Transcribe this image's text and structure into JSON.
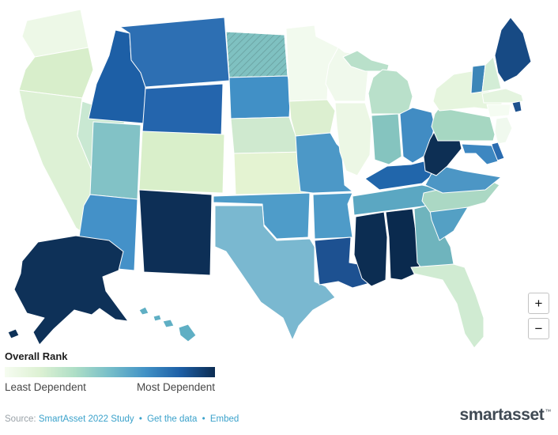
{
  "chart_data": {
    "type": "choropleth",
    "region": "United States",
    "title": "Overall Rank",
    "legend": {
      "title": "Overall Rank",
      "min_label": "Least Dependent",
      "max_label": "Most Dependent",
      "gradient": [
        "#f6fcf1",
        "#ddf1d3",
        "#aedec6",
        "#76bec9",
        "#4292c6",
        "#1d5fa6",
        "#0c2c52"
      ]
    },
    "states": [
      {
        "abbr": "WA",
        "name": "Washington",
        "color": "#edf8e7"
      },
      {
        "abbr": "OR",
        "name": "Oregon",
        "color": "#d8eecb"
      },
      {
        "abbr": "CA",
        "name": "California",
        "color": "#ddf1d5"
      },
      {
        "abbr": "NV",
        "name": "Nevada",
        "color": "#c9e8d2"
      },
      {
        "abbr": "ID",
        "name": "Idaho",
        "color": "#1d5fa6"
      },
      {
        "abbr": "MT",
        "name": "Montana",
        "color": "#2d6fb3"
      },
      {
        "abbr": "WY",
        "name": "Wyoming",
        "color": "#2465ad"
      },
      {
        "abbr": "UT",
        "name": "Utah",
        "color": "#82c2c6"
      },
      {
        "abbr": "CO",
        "name": "Colorado",
        "color": "#d9efca"
      },
      {
        "abbr": "AZ",
        "name": "Arizona",
        "color": "#4491c8"
      },
      {
        "abbr": "NM",
        "name": "New Mexico",
        "color": "#0d2f56"
      },
      {
        "abbr": "ND",
        "name": "North Dakota",
        "color": "#7fc1c1",
        "hatched": true
      },
      {
        "abbr": "SD",
        "name": "South Dakota",
        "color": "#4190c6"
      },
      {
        "abbr": "NE",
        "name": "Nebraska",
        "color": "#cfe9cf"
      },
      {
        "abbr": "KS",
        "name": "Kansas",
        "color": "#e4f3d2"
      },
      {
        "abbr": "OK",
        "name": "Oklahoma",
        "color": "#4e9cc9"
      },
      {
        "abbr": "TX",
        "name": "Texas",
        "color": "#7ab8d0"
      },
      {
        "abbr": "MN",
        "name": "Minnesota",
        "color": "#f2faee"
      },
      {
        "abbr": "IA",
        "name": "Iowa",
        "color": "#dcefd0"
      },
      {
        "abbr": "MO",
        "name": "Missouri",
        "color": "#4c98c7"
      },
      {
        "abbr": "AR",
        "name": "Arkansas",
        "color": "#4e9bc8"
      },
      {
        "abbr": "LA",
        "name": "Louisiana",
        "color": "#1d5191"
      },
      {
        "abbr": "WI",
        "name": "Wisconsin",
        "color": "#f0f9ec"
      },
      {
        "abbr": "IL",
        "name": "Illinois",
        "color": "#ecf7e5"
      },
      {
        "abbr": "MI",
        "name": "Michigan",
        "color": "#b9e0ca"
      },
      {
        "abbr": "IN",
        "name": "Indiana",
        "color": "#85c4bf"
      },
      {
        "abbr": "OH",
        "name": "Ohio",
        "color": "#418cc3"
      },
      {
        "abbr": "KY",
        "name": "Kentucky",
        "color": "#2166ab"
      },
      {
        "abbr": "TN",
        "name": "Tennessee",
        "color": "#5ba7c2"
      },
      {
        "abbr": "MS",
        "name": "Mississippi",
        "color": "#0c2d52"
      },
      {
        "abbr": "AL",
        "name": "Alabama",
        "color": "#0a2a4e"
      },
      {
        "abbr": "GA",
        "name": "Georgia",
        "color": "#6fb4bd"
      },
      {
        "abbr": "FL",
        "name": "Florida",
        "color": "#d0ebd2"
      },
      {
        "abbr": "SC",
        "name": "South Carolina",
        "color": "#54a0c4"
      },
      {
        "abbr": "NC",
        "name": "North Carolina",
        "color": "#abd8c4"
      },
      {
        "abbr": "VA",
        "name": "Virginia",
        "color": "#4c96c5"
      },
      {
        "abbr": "WV",
        "name": "West Virginia",
        "color": "#0d2f54"
      },
      {
        "abbr": "PA",
        "name": "Pennsylvania",
        "color": "#a6d7c2"
      },
      {
        "abbr": "NY",
        "name": "New York",
        "color": "#e6f5de"
      },
      {
        "abbr": "VT",
        "name": "Vermont",
        "color": "#3c86b8"
      },
      {
        "abbr": "NH",
        "name": "New Hampshire",
        "color": "#d3edd6"
      },
      {
        "abbr": "ME",
        "name": "Maine",
        "color": "#174a84"
      },
      {
        "abbr": "MA",
        "name": "Massachusetts",
        "color": "#e4f4df"
      },
      {
        "abbr": "RI",
        "name": "Rhode Island",
        "color": "#1d518e"
      },
      {
        "abbr": "CT",
        "name": "Connecticut",
        "color": "#f5fcf2"
      },
      {
        "abbr": "NJ",
        "name": "New Jersey",
        "color": "#f0f9ee"
      },
      {
        "abbr": "DE",
        "name": "Delaware",
        "color": "#2a6cb0"
      },
      {
        "abbr": "MD",
        "name": "Maryland",
        "color": "#3d87c1"
      },
      {
        "abbr": "AK",
        "name": "Alaska",
        "color": "#0e3158"
      },
      {
        "abbr": "HI",
        "name": "Hawaii",
        "color": "#5fafc4"
      }
    ]
  },
  "controls": {
    "zoom_in_label": "+",
    "zoom_out_label": "−"
  },
  "footer": {
    "source_prefix": "Source:",
    "links": [
      "SmartAsset 2022 Study",
      "Get the data",
      "Embed"
    ],
    "separator": "•"
  },
  "branding": {
    "logo_text": "smartasset",
    "trademark": "™"
  }
}
